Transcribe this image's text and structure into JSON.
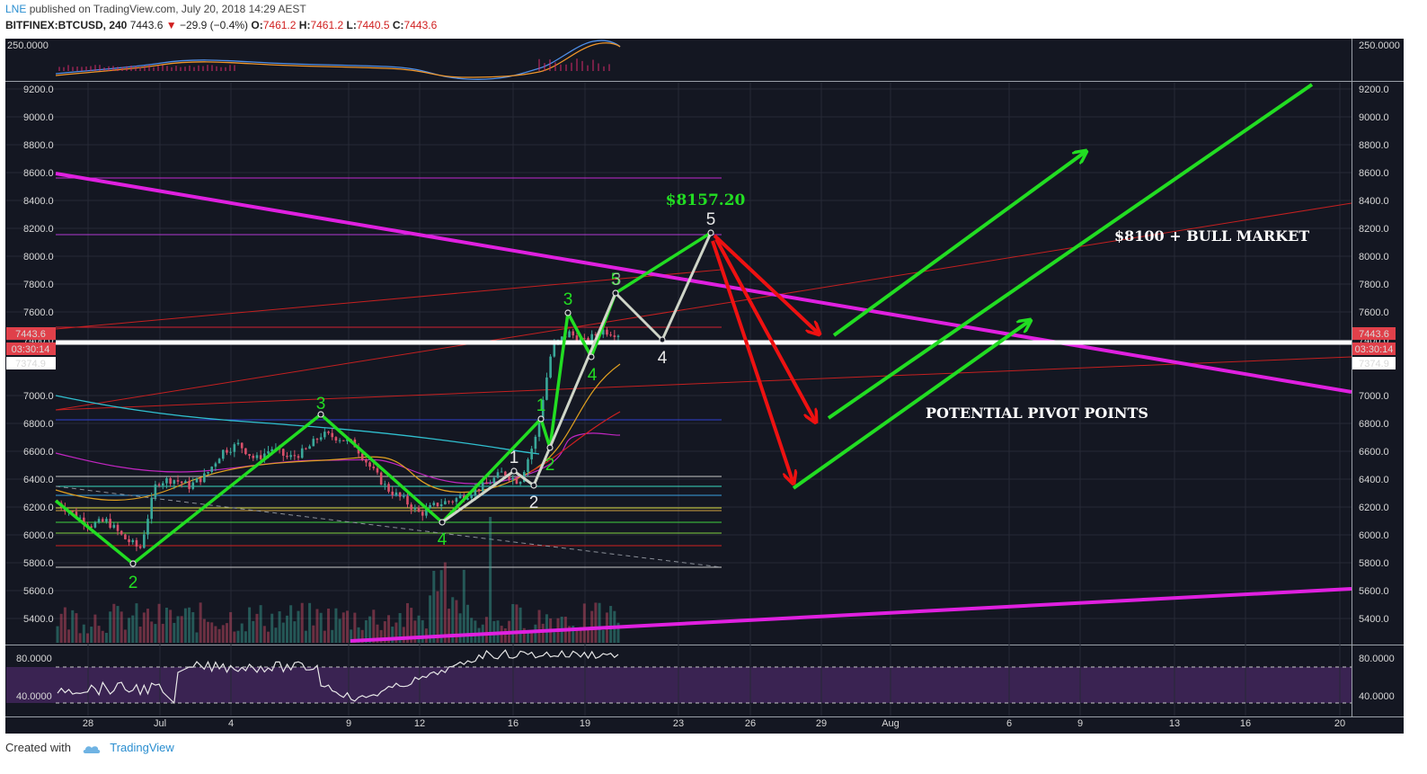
{
  "header": {
    "author": "LNE",
    "published": "published on TradingView.com, July 20, 2018 14:29 AEST",
    "symbol": "BITFINEX:BTCUSD, 240",
    "last": "7443.6",
    "arrow": "▼",
    "change": "−29.9 (−0.4%)",
    "o_label": "O:",
    "o": "7461.2",
    "h_label": "H:",
    "h": "7461.2",
    "l_label": "L:",
    "l": "7440.5",
    "c_label": "C:",
    "c": "7443.6"
  },
  "footer": {
    "created": "Created with",
    "brand": "TradingView"
  },
  "colors": {
    "background": "#141722",
    "grid": "#2a2e3a",
    "trend_magenta": "#e020e0",
    "wave_green": "#22dd22",
    "wave_white": "#cfd5c8",
    "arrow_red": "#ee1111",
    "pivot_white": "#ffffff",
    "price_badge": "#e0404a"
  },
  "chart_data": {
    "type": "line",
    "title": "BITFINEX:BTCUSD, 240",
    "x_ticks": [
      "28",
      "Jul",
      "4",
      "9",
      "12",
      "16",
      "19",
      "23",
      "26",
      "29",
      "Aug",
      "6",
      "9",
      "13",
      "16",
      "20"
    ],
    "price_axis": {
      "ylim": [
        5200,
        9300
      ],
      "ticks": [
        "9200.0",
        "9000.0",
        "8800.0",
        "8600.0",
        "8400.0",
        "8200.0",
        "8000.0",
        "7800.0",
        "7600.0",
        "7400.0",
        "7000.0",
        "6800.0",
        "6600.0",
        "6400.0",
        "6200.0",
        "6000.0",
        "5800.0",
        "5600.0",
        "5400.0"
      ]
    },
    "macd_axis": {
      "ticks": [
        "250.0000"
      ]
    },
    "rsi_axis": {
      "ylim": [
        20,
        100
      ],
      "ticks": [
        "80.0000",
        "40.0000"
      ]
    },
    "price_badges": {
      "last": "7443.6",
      "countdown": "03:30:14",
      "other": "7374.9"
    },
    "pivot_level": 7400,
    "price_path": [
      {
        "x": 0,
        "y": 6230
      },
      {
        "x": 1,
        "y": 6150
      },
      {
        "x": 2,
        "y": 6070
      },
      {
        "x": 3,
        "y": 6100
      },
      {
        "x": 4,
        "y": 5980
      },
      {
        "x": 5,
        "y": 5900
      },
      {
        "x": 6,
        "y": 6380
      },
      {
        "x": 7,
        "y": 6400
      },
      {
        "x": 8,
        "y": 6350
      },
      {
        "x": 9,
        "y": 6430
      },
      {
        "x": 10,
        "y": 6600
      },
      {
        "x": 11,
        "y": 6650
      },
      {
        "x": 12,
        "y": 6540
      },
      {
        "x": 13,
        "y": 6620
      },
      {
        "x": 14,
        "y": 6550
      },
      {
        "x": 15,
        "y": 6600
      },
      {
        "x": 16,
        "y": 6720
      },
      {
        "x": 17,
        "y": 6700
      },
      {
        "x": 18,
        "y": 6650
      },
      {
        "x": 19,
        "y": 6480
      },
      {
        "x": 20,
        "y": 6330
      },
      {
        "x": 21,
        "y": 6250
      },
      {
        "x": 22,
        "y": 6150
      },
      {
        "x": 23,
        "y": 6220
      },
      {
        "x": 24,
        "y": 6250
      },
      {
        "x": 25,
        "y": 6300
      },
      {
        "x": 26,
        "y": 6360
      },
      {
        "x": 27,
        "y": 6450
      },
      {
        "x": 28,
        "y": 6380
      },
      {
        "x": 29,
        "y": 6700
      },
      {
        "x": 30,
        "y": 7350
      },
      {
        "x": 31,
        "y": 7450
      },
      {
        "x": 32,
        "y": 7380
      },
      {
        "x": 33,
        "y": 7470
      },
      {
        "x": 34,
        "y": 7443.6
      }
    ],
    "waves": {
      "green_labels": [
        "2",
        "3",
        "4",
        "1",
        "2",
        "3",
        "4",
        "5"
      ],
      "white_labels": [
        "1",
        "2",
        "3",
        "4",
        "5"
      ],
      "target_price": "$8157.20"
    },
    "annotations": {
      "bull": "$8100 + BULL MARKET",
      "pivots": "POTENTIAL PIVOT POINTS"
    }
  }
}
